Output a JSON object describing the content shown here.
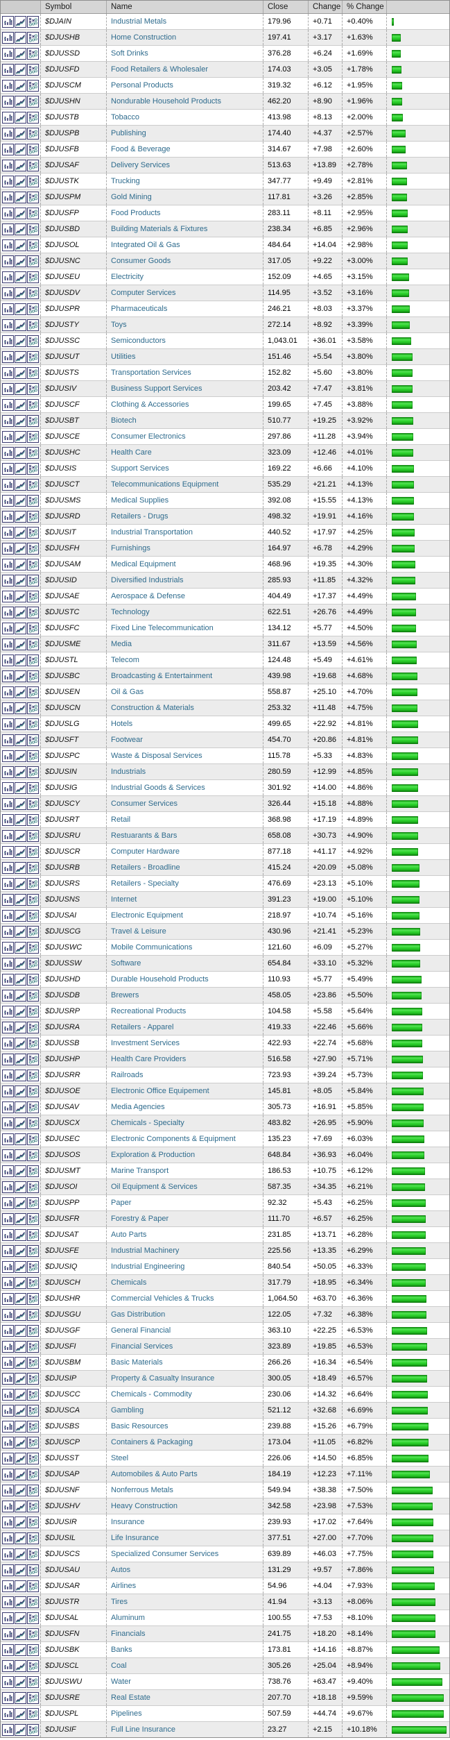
{
  "table": {
    "columns": {
      "symbol": "Symbol",
      "name": "Name",
      "close": "Close",
      "change": "Change",
      "pct": "% Change"
    },
    "row_icons": [
      {
        "name": "bar-chart-icon"
      },
      {
        "name": "line-chart-icon"
      },
      {
        "name": "pnf-chart-icon"
      }
    ],
    "colors": {
      "bar_green": "#2fd42f",
      "name_link": "#2e6b8d",
      "header_bg": "#d6d6d6",
      "alt_row_bg": "#ececec",
      "icon_navy": "#3a3a70",
      "icon_teal": "#4e8f8f"
    },
    "rows": [
      {
        "symbol": "$DJAIN",
        "name": "Industrial Metals",
        "close": "179.96",
        "change": "+0.71",
        "pct": "+0.40%"
      },
      {
        "symbol": "$DJUSHB",
        "name": "Home Construction",
        "close": "197.41",
        "change": "+3.17",
        "pct": "+1.63%"
      },
      {
        "symbol": "$DJUSSD",
        "name": "Soft Drinks",
        "close": "376.28",
        "change": "+6.24",
        "pct": "+1.69%"
      },
      {
        "symbol": "$DJUSFD",
        "name": "Food Retailers & Wholesaler",
        "close": "174.03",
        "change": "+3.05",
        "pct": "+1.78%"
      },
      {
        "symbol": "$DJUSCM",
        "name": "Personal Products",
        "close": "319.32",
        "change": "+6.12",
        "pct": "+1.95%"
      },
      {
        "symbol": "$DJUSHN",
        "name": "Nondurable Household Products",
        "close": "462.20",
        "change": "+8.90",
        "pct": "+1.96%"
      },
      {
        "symbol": "$DJUSTB",
        "name": "Tobacco",
        "close": "413.98",
        "change": "+8.13",
        "pct": "+2.00%"
      },
      {
        "symbol": "$DJUSPB",
        "name": "Publishing",
        "close": "174.40",
        "change": "+4.37",
        "pct": "+2.57%"
      },
      {
        "symbol": "$DJUSFB",
        "name": "Food & Beverage",
        "close": "314.67",
        "change": "+7.98",
        "pct": "+2.60%"
      },
      {
        "symbol": "$DJUSAF",
        "name": "Delivery Services",
        "close": "513.63",
        "change": "+13.89",
        "pct": "+2.78%"
      },
      {
        "symbol": "$DJUSTK",
        "name": "Trucking",
        "close": "347.77",
        "change": "+9.49",
        "pct": "+2.81%"
      },
      {
        "symbol": "$DJUSPM",
        "name": "Gold Mining",
        "close": "117.81",
        "change": "+3.26",
        "pct": "+2.85%"
      },
      {
        "symbol": "$DJUSFP",
        "name": "Food Products",
        "close": "283.11",
        "change": "+8.11",
        "pct": "+2.95%"
      },
      {
        "symbol": "$DJUSBD",
        "name": "Building Materials & Fixtures",
        "close": "238.34",
        "change": "+6.85",
        "pct": "+2.96%"
      },
      {
        "symbol": "$DJUSOL",
        "name": "Integrated Oil & Gas",
        "close": "484.64",
        "change": "+14.04",
        "pct": "+2.98%"
      },
      {
        "symbol": "$DJUSNC",
        "name": "Consumer Goods",
        "close": "317.05",
        "change": "+9.22",
        "pct": "+3.00%"
      },
      {
        "symbol": "$DJUSEU",
        "name": "Electricity",
        "close": "152.09",
        "change": "+4.65",
        "pct": "+3.15%"
      },
      {
        "symbol": "$DJUSDV",
        "name": "Computer Services",
        "close": "114.95",
        "change": "+3.52",
        "pct": "+3.16%"
      },
      {
        "symbol": "$DJUSPR",
        "name": "Pharmaceuticals",
        "close": "246.21",
        "change": "+8.03",
        "pct": "+3.37%"
      },
      {
        "symbol": "$DJUSTY",
        "name": "Toys",
        "close": "272.14",
        "change": "+8.92",
        "pct": "+3.39%"
      },
      {
        "symbol": "$DJUSSC",
        "name": "Semiconductors",
        "close": "1,043.01",
        "change": "+36.01",
        "pct": "+3.58%"
      },
      {
        "symbol": "$DJUSUT",
        "name": "Utilities",
        "close": "151.46",
        "change": "+5.54",
        "pct": "+3.80%"
      },
      {
        "symbol": "$DJUSTS",
        "name": "Transportation Services",
        "close": "152.82",
        "change": "+5.60",
        "pct": "+3.80%"
      },
      {
        "symbol": "$DJUSIV",
        "name": "Business Support Services",
        "close": "203.42",
        "change": "+7.47",
        "pct": "+3.81%"
      },
      {
        "symbol": "$DJUSCF",
        "name": "Clothing & Accessories",
        "close": "199.65",
        "change": "+7.45",
        "pct": "+3.88%"
      },
      {
        "symbol": "$DJUSBT",
        "name": "Biotech",
        "close": "510.77",
        "change": "+19.25",
        "pct": "+3.92%"
      },
      {
        "symbol": "$DJUSCE",
        "name": "Consumer Electronics",
        "close": "297.86",
        "change": "+11.28",
        "pct": "+3.94%"
      },
      {
        "symbol": "$DJUSHC",
        "name": "Health Care",
        "close": "323.09",
        "change": "+12.46",
        "pct": "+4.01%"
      },
      {
        "symbol": "$DJUSIS",
        "name": "Support Services",
        "close": "169.22",
        "change": "+6.66",
        "pct": "+4.10%"
      },
      {
        "symbol": "$DJUSCT",
        "name": "Telecommunications Equipment",
        "close": "535.29",
        "change": "+21.21",
        "pct": "+4.13%"
      },
      {
        "symbol": "$DJUSMS",
        "name": "Medical Supplies",
        "close": "392.08",
        "change": "+15.55",
        "pct": "+4.13%"
      },
      {
        "symbol": "$DJUSRD",
        "name": "Retailers - Drugs",
        "close": "498.32",
        "change": "+19.91",
        "pct": "+4.16%"
      },
      {
        "symbol": "$DJUSIT",
        "name": "Industrial Transportation",
        "close": "440.52",
        "change": "+17.97",
        "pct": "+4.25%"
      },
      {
        "symbol": "$DJUSFH",
        "name": "Furnishings",
        "close": "164.97",
        "change": "+6.78",
        "pct": "+4.29%"
      },
      {
        "symbol": "$DJUSAM",
        "name": "Medical Equipment",
        "close": "468.96",
        "change": "+19.35",
        "pct": "+4.30%"
      },
      {
        "symbol": "$DJUSID",
        "name": "Diversified Industrials",
        "close": "285.93",
        "change": "+11.85",
        "pct": "+4.32%"
      },
      {
        "symbol": "$DJUSAE",
        "name": "Aerospace & Defense",
        "close": "404.49",
        "change": "+17.37",
        "pct": "+4.49%"
      },
      {
        "symbol": "$DJUSTC",
        "name": "Technology",
        "close": "622.51",
        "change": "+26.76",
        "pct": "+4.49%"
      },
      {
        "symbol": "$DJUSFC",
        "name": "Fixed Line Telecommunication",
        "close": "134.12",
        "change": "+5.77",
        "pct": "+4.50%"
      },
      {
        "symbol": "$DJUSME",
        "name": "Media",
        "close": "311.67",
        "change": "+13.59",
        "pct": "+4.56%"
      },
      {
        "symbol": "$DJUSTL",
        "name": "Telecom",
        "close": "124.48",
        "change": "+5.49",
        "pct": "+4.61%"
      },
      {
        "symbol": "$DJUSBC",
        "name": "Broadcasting & Entertainment",
        "close": "439.98",
        "change": "+19.68",
        "pct": "+4.68%"
      },
      {
        "symbol": "$DJUSEN",
        "name": "Oil & Gas",
        "close": "558.87",
        "change": "+25.10",
        "pct": "+4.70%"
      },
      {
        "symbol": "$DJUSCN",
        "name": "Construction & Materials",
        "close": "253.32",
        "change": "+11.48",
        "pct": "+4.75%"
      },
      {
        "symbol": "$DJUSLG",
        "name": "Hotels",
        "close": "499.65",
        "change": "+22.92",
        "pct": "+4.81%"
      },
      {
        "symbol": "$DJUSFT",
        "name": "Footwear",
        "close": "454.70",
        "change": "+20.86",
        "pct": "+4.81%"
      },
      {
        "symbol": "$DJUSPC",
        "name": "Waste & Disposal Services",
        "close": "115.78",
        "change": "+5.33",
        "pct": "+4.83%"
      },
      {
        "symbol": "$DJUSIN",
        "name": "Industrials",
        "close": "280.59",
        "change": "+12.99",
        "pct": "+4.85%"
      },
      {
        "symbol": "$DJUSIG",
        "name": "Industrial Goods & Services",
        "close": "301.92",
        "change": "+14.00",
        "pct": "+4.86%"
      },
      {
        "symbol": "$DJUSCY",
        "name": "Consumer Services",
        "close": "326.44",
        "change": "+15.18",
        "pct": "+4.88%"
      },
      {
        "symbol": "$DJUSRT",
        "name": "Retail",
        "close": "368.98",
        "change": "+17.19",
        "pct": "+4.89%"
      },
      {
        "symbol": "$DJUSRU",
        "name": "Restuarants & Bars",
        "close": "658.08",
        "change": "+30.73",
        "pct": "+4.90%"
      },
      {
        "symbol": "$DJUSCR",
        "name": "Computer Hardware",
        "close": "877.18",
        "change": "+41.17",
        "pct": "+4.92%"
      },
      {
        "symbol": "$DJUSRB",
        "name": "Retailers - Broadline",
        "close": "415.24",
        "change": "+20.09",
        "pct": "+5.08%"
      },
      {
        "symbol": "$DJUSRS",
        "name": "Retailers - Specialty",
        "close": "476.69",
        "change": "+23.13",
        "pct": "+5.10%"
      },
      {
        "symbol": "$DJUSNS",
        "name": "Internet",
        "close": "391.23",
        "change": "+19.00",
        "pct": "+5.10%"
      },
      {
        "symbol": "$DJUSAI",
        "name": "Electronic Equipment",
        "close": "218.97",
        "change": "+10.74",
        "pct": "+5.16%"
      },
      {
        "symbol": "$DJUSCG",
        "name": "Travel & Leisure",
        "close": "430.96",
        "change": "+21.41",
        "pct": "+5.23%"
      },
      {
        "symbol": "$DJUSWC",
        "name": "Mobile Communications",
        "close": "121.60",
        "change": "+6.09",
        "pct": "+5.27%"
      },
      {
        "symbol": "$DJUSSW",
        "name": "Software",
        "close": "654.84",
        "change": "+33.10",
        "pct": "+5.32%"
      },
      {
        "symbol": "$DJUSHD",
        "name": "Durable Household Products",
        "close": "110.93",
        "change": "+5.77",
        "pct": "+5.49%"
      },
      {
        "symbol": "$DJUSDB",
        "name": "Brewers",
        "close": "458.05",
        "change": "+23.86",
        "pct": "+5.50%"
      },
      {
        "symbol": "$DJUSRP",
        "name": "Recreational Products",
        "close": "104.58",
        "change": "+5.58",
        "pct": "+5.64%"
      },
      {
        "symbol": "$DJUSRA",
        "name": "Retailers - Apparel",
        "close": "419.33",
        "change": "+22.46",
        "pct": "+5.66%"
      },
      {
        "symbol": "$DJUSSB",
        "name": "Investment Services",
        "close": "422.93",
        "change": "+22.74",
        "pct": "+5.68%"
      },
      {
        "symbol": "$DJUSHP",
        "name": "Health Care Providers",
        "close": "516.58",
        "change": "+27.90",
        "pct": "+5.71%"
      },
      {
        "symbol": "$DJUSRR",
        "name": "Railroads",
        "close": "723.93",
        "change": "+39.24",
        "pct": "+5.73%"
      },
      {
        "symbol": "$DJUSOE",
        "name": "Electronic Office Equipement",
        "close": "145.81",
        "change": "+8.05",
        "pct": "+5.84%"
      },
      {
        "symbol": "$DJUSAV",
        "name": "Media Agencies",
        "close": "305.73",
        "change": "+16.91",
        "pct": "+5.85%"
      },
      {
        "symbol": "$DJUSCX",
        "name": "Chemicals - Specialty",
        "close": "483.82",
        "change": "+26.95",
        "pct": "+5.90%"
      },
      {
        "symbol": "$DJUSEC",
        "name": "Electronic Components & Equipment",
        "close": "135.23",
        "change": "+7.69",
        "pct": "+6.03%"
      },
      {
        "symbol": "$DJUSOS",
        "name": "Exploration & Production",
        "close": "648.84",
        "change": "+36.93",
        "pct": "+6.04%"
      },
      {
        "symbol": "$DJUSMT",
        "name": "Marine Transport",
        "close": "186.53",
        "change": "+10.75",
        "pct": "+6.12%"
      },
      {
        "symbol": "$DJUSOI",
        "name": "Oil Equipment & Services",
        "close": "587.35",
        "change": "+34.35",
        "pct": "+6.21%"
      },
      {
        "symbol": "$DJUSPP",
        "name": "Paper",
        "close": "92.32",
        "change": "+5.43",
        "pct": "+6.25%"
      },
      {
        "symbol": "$DJUSFR",
        "name": "Forestry & Paper",
        "close": "111.70",
        "change": "+6.57",
        "pct": "+6.25%"
      },
      {
        "symbol": "$DJUSAT",
        "name": "Auto Parts",
        "close": "231.85",
        "change": "+13.71",
        "pct": "+6.28%"
      },
      {
        "symbol": "$DJUSFE",
        "name": "Industrial Machinery",
        "close": "225.56",
        "change": "+13.35",
        "pct": "+6.29%"
      },
      {
        "symbol": "$DJUSIQ",
        "name": "Industrial Engineering",
        "close": "840.54",
        "change": "+50.05",
        "pct": "+6.33%"
      },
      {
        "symbol": "$DJUSCH",
        "name": "Chemicals",
        "close": "317.79",
        "change": "+18.95",
        "pct": "+6.34%"
      },
      {
        "symbol": "$DJUSHR",
        "name": "Commercial Vehicles & Trucks",
        "close": "1,064.50",
        "change": "+63.70",
        "pct": "+6.36%"
      },
      {
        "symbol": "$DJUSGU",
        "name": "Gas Distribution",
        "close": "122.05",
        "change": "+7.32",
        "pct": "+6.38%"
      },
      {
        "symbol": "$DJUSGF",
        "name": "General Financial",
        "close": "363.10",
        "change": "+22.25",
        "pct": "+6.53%"
      },
      {
        "symbol": "$DJUSFI",
        "name": "Financial Services",
        "close": "323.89",
        "change": "+19.85",
        "pct": "+6.53%"
      },
      {
        "symbol": "$DJUSBM",
        "name": "Basic Materials",
        "close": "266.26",
        "change": "+16.34",
        "pct": "+6.54%"
      },
      {
        "symbol": "$DJUSIP",
        "name": "Property & Casualty Insurance",
        "close": "300.05",
        "change": "+18.49",
        "pct": "+6.57%"
      },
      {
        "symbol": "$DJUSCC",
        "name": "Chemicals - Commodity",
        "close": "230.06",
        "change": "+14.32",
        "pct": "+6.64%"
      },
      {
        "symbol": "$DJUSCA",
        "name": "Gambling",
        "close": "521.12",
        "change": "+32.68",
        "pct": "+6.69%"
      },
      {
        "symbol": "$DJUSBS",
        "name": "Basic Resources",
        "close": "239.88",
        "change": "+15.26",
        "pct": "+6.79%"
      },
      {
        "symbol": "$DJUSCP",
        "name": "Containers & Packaging",
        "close": "173.04",
        "change": "+11.05",
        "pct": "+6.82%"
      },
      {
        "symbol": "$DJUSST",
        "name": "Steel",
        "close": "226.06",
        "change": "+14.50",
        "pct": "+6.85%"
      },
      {
        "symbol": "$DJUSAP",
        "name": "Automobiles & Auto Parts",
        "close": "184.19",
        "change": "+12.23",
        "pct": "+7.11%"
      },
      {
        "symbol": "$DJUSNF",
        "name": "Nonferrous Metals",
        "close": "549.94",
        "change": "+38.38",
        "pct": "+7.50%"
      },
      {
        "symbol": "$DJUSHV",
        "name": "Heavy Construction",
        "close": "342.58",
        "change": "+23.98",
        "pct": "+7.53%"
      },
      {
        "symbol": "$DJUSIR",
        "name": "Insurance",
        "close": "239.93",
        "change": "+17.02",
        "pct": "+7.64%"
      },
      {
        "symbol": "$DJUSIL",
        "name": "Life Insurance",
        "close": "377.51",
        "change": "+27.00",
        "pct": "+7.70%"
      },
      {
        "symbol": "$DJUSCS",
        "name": "Specialized Consumer Services",
        "close": "639.89",
        "change": "+46.03",
        "pct": "+7.75%"
      },
      {
        "symbol": "$DJUSAU",
        "name": "Autos",
        "close": "131.29",
        "change": "+9.57",
        "pct": "+7.86%"
      },
      {
        "symbol": "$DJUSAR",
        "name": "Airlines",
        "close": "54.96",
        "change": "+4.04",
        "pct": "+7.93%"
      },
      {
        "symbol": "$DJUSTR",
        "name": "Tires",
        "close": "41.94",
        "change": "+3.13",
        "pct": "+8.06%"
      },
      {
        "symbol": "$DJUSAL",
        "name": "Aluminum",
        "close": "100.55",
        "change": "+7.53",
        "pct": "+8.10%"
      },
      {
        "symbol": "$DJUSFN",
        "name": "Financials",
        "close": "241.75",
        "change": "+18.20",
        "pct": "+8.14%"
      },
      {
        "symbol": "$DJUSBK",
        "name": "Banks",
        "close": "173.81",
        "change": "+14.16",
        "pct": "+8.87%"
      },
      {
        "symbol": "$DJUSCL",
        "name": "Coal",
        "close": "305.26",
        "change": "+25.04",
        "pct": "+8.94%"
      },
      {
        "symbol": "$DJUSWU",
        "name": "Water",
        "close": "738.76",
        "change": "+63.47",
        "pct": "+9.40%"
      },
      {
        "symbol": "$DJUSRE",
        "name": "Real Estate",
        "close": "207.70",
        "change": "+18.18",
        "pct": "+9.59%"
      },
      {
        "symbol": "$DJUSPL",
        "name": "Pipelines",
        "close": "507.59",
        "change": "+44.74",
        "pct": "+9.67%"
      },
      {
        "symbol": "$DJUSIF",
        "name": "Full Line Insurance",
        "close": "23.27",
        "change": "+2.15",
        "pct": "+10.18%"
      }
    ]
  }
}
